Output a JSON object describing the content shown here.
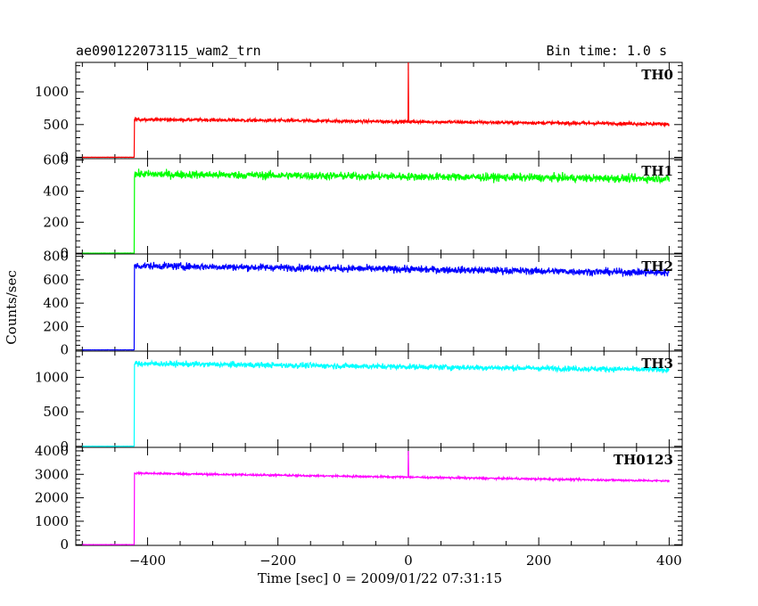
{
  "header": {
    "object_name": "ae090122073115_wam2_trn",
    "bin_time": "Bin time: 1.0 s"
  },
  "chart_data": {
    "type": "line",
    "xlabel": "Time [sec] 0 = 2009/01/22 07:31:15",
    "ylabel": "Counts/sec",
    "xlim": [
      -510,
      420
    ],
    "x_ticks": [
      -400,
      -200,
      0,
      200,
      400
    ],
    "x_tick_labels": [
      "−400",
      "−200",
      "0",
      "200",
      "400"
    ],
    "panels": [
      {
        "name": "TH0",
        "color": "#ff0000",
        "ylim": [
          -20,
          1450
        ],
        "y_ticks": [
          0,
          500,
          1000
        ],
        "y_tick_labels": [
          "0",
          "500",
          "1000"
        ],
        "pre_level": 0,
        "t_rise": -420,
        "level_start": 580,
        "level_end": 510,
        "noise": 25,
        "spike": {
          "x": 0,
          "y": 1450
        },
        "x": [
          -500,
          -420,
          -419,
          -300,
          -200,
          -100,
          0,
          100,
          200,
          300,
          400
        ],
        "y": [
          0,
          0,
          580,
          580,
          590,
          585,
          570,
          560,
          545,
          530,
          510
        ]
      },
      {
        "name": "TH1",
        "color": "#00ff00",
        "ylim": [
          -5,
          610
        ],
        "y_ticks": [
          0,
          200,
          400,
          600
        ],
        "y_tick_labels": [
          "0",
          "200",
          "400",
          "600"
        ],
        "pre_level": 0,
        "t_rise": -420,
        "level_start": 510,
        "level_end": 480,
        "noise": 25,
        "spike": null,
        "x": [
          -500,
          -420,
          -419,
          -300,
          -200,
          -100,
          0,
          100,
          200,
          300,
          400
        ],
        "y": [
          0,
          0,
          510,
          515,
          520,
          515,
          505,
          500,
          495,
          490,
          480
        ]
      },
      {
        "name": "TH2",
        "color": "#0000ff",
        "ylim": [
          -10,
          820
        ],
        "y_ticks": [
          0,
          200,
          400,
          600,
          800
        ],
        "y_tick_labels": [
          "0",
          "200",
          "400",
          "600",
          "800"
        ],
        "pre_level": 0,
        "t_rise": -420,
        "level_start": 720,
        "level_end": 660,
        "noise": 30,
        "spike": null,
        "x": [
          -500,
          -420,
          -419,
          -300,
          -200,
          -100,
          0,
          100,
          200,
          300,
          400
        ],
        "y": [
          0,
          0,
          720,
          730,
          735,
          725,
          715,
          700,
          690,
          675,
          660
        ]
      },
      {
        "name": "TH3",
        "color": "#00ffff",
        "ylim": [
          -15,
          1380
        ],
        "y_ticks": [
          0,
          500,
          1000
        ],
        "y_tick_labels": [
          "0",
          "500",
          "1000"
        ],
        "pre_level": 0,
        "t_rise": -420,
        "level_start": 1200,
        "level_end": 1110,
        "noise": 40,
        "spike": null,
        "x": [
          -500,
          -420,
          -419,
          -300,
          -200,
          -100,
          0,
          100,
          200,
          300,
          400
        ],
        "y": [
          0,
          0,
          1200,
          1210,
          1215,
          1200,
          1185,
          1165,
          1150,
          1130,
          1110
        ]
      },
      {
        "name": "TH0123",
        "color": "#ff00ff",
        "ylim": [
          -30,
          4150
        ],
        "y_ticks": [
          0,
          1000,
          2000,
          3000,
          4000
        ],
        "y_tick_labels": [
          "0",
          "1000",
          "2000",
          "3000",
          "4000"
        ],
        "pre_level": 0,
        "t_rise": -420,
        "level_start": 3050,
        "level_end": 2720,
        "noise": 40,
        "spike": {
          "x": 0,
          "y": 4000
        },
        "x": [
          -500,
          -420,
          -419,
          -300,
          -200,
          -100,
          0,
          100,
          200,
          300,
          400
        ],
        "y": [
          0,
          0,
          3050,
          3080,
          3100,
          3060,
          3020,
          2980,
          2930,
          2850,
          2720
        ]
      }
    ]
  }
}
